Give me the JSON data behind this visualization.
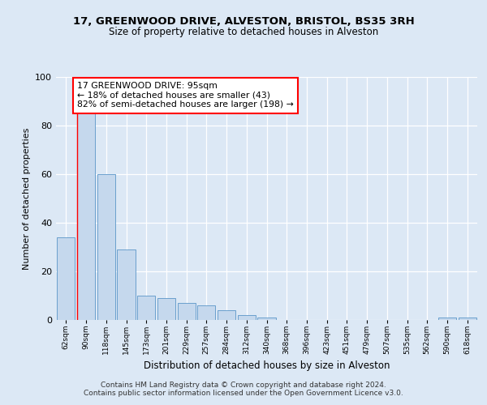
{
  "title1": "17, GREENWOOD DRIVE, ALVESTON, BRISTOL, BS35 3RH",
  "title2": "Size of property relative to detached houses in Alveston",
  "xlabel": "Distribution of detached houses by size in Alveston",
  "ylabel": "Number of detached properties",
  "footer1": "Contains HM Land Registry data © Crown copyright and database right 2024.",
  "footer2": "Contains public sector information licensed under the Open Government Licence v3.0.",
  "annotation_line1": "17 GREENWOOD DRIVE: 95sqm",
  "annotation_line2": "← 18% of detached houses are smaller (43)",
  "annotation_line3": "82% of semi-detached houses are larger (198) →",
  "bin_labels": [
    "62sqm",
    "90sqm",
    "118sqm",
    "145sqm",
    "173sqm",
    "201sqm",
    "229sqm",
    "257sqm",
    "284sqm",
    "312sqm",
    "340sqm",
    "368sqm",
    "396sqm",
    "423sqm",
    "451sqm",
    "479sqm",
    "507sqm",
    "535sqm",
    "562sqm",
    "590sqm",
    "618sqm"
  ],
  "bar_values": [
    34,
    85,
    60,
    29,
    10,
    9,
    7,
    6,
    4,
    2,
    1,
    0,
    0,
    0,
    0,
    0,
    0,
    0,
    0,
    1,
    1
  ],
  "bar_color": "#c5d8ed",
  "bar_edge_color": "#5a96c8",
  "ylim": [
    0,
    100
  ],
  "yticks": [
    0,
    20,
    40,
    60,
    80,
    100
  ],
  "bg_color": "#dce8f5",
  "plot_bg_color": "#dce8f5",
  "reference_line_color": "red",
  "annotation_box_edge": "red",
  "ref_line_x": 0.56
}
